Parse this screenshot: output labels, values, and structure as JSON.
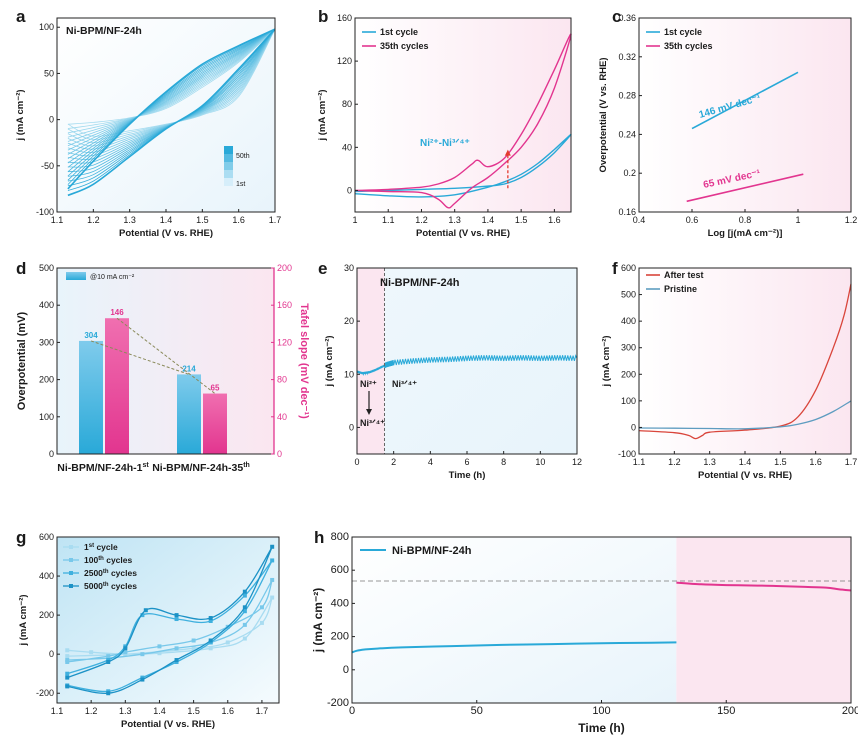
{
  "figure": {
    "description_panels": [
      "a",
      "b",
      "c",
      "d",
      "e",
      "f",
      "g",
      "h"
    ]
  },
  "colors": {
    "blue": "#29a9d8",
    "blue_light": "#a6dcf0",
    "pink": "#e2358f",
    "red": "#d9453b",
    "steel": "#5e9cc0",
    "bg_blue": "#e8f4fb",
    "bg_pink": "#fbe6f0",
    "dark": "#1a1a1a",
    "olive": "#8a8a5a",
    "arrow_red": "#e33b2f"
  },
  "chart_data": [
    {
      "panel": "a",
      "type": "line",
      "annotation": "Ni-BPM/NF-24h",
      "xlabel": "Potential (V vs. RHE)",
      "ylabel": "j (mA cm⁻²)",
      "xlim": [
        1.1,
        1.7
      ],
      "ylim": [
        -100,
        110
      ],
      "xticks": [
        1.1,
        1.2,
        1.3,
        1.4,
        1.5,
        1.6,
        1.7
      ],
      "yticks": [
        -100,
        -50,
        0,
        50,
        100
      ],
      "colorbar_top": "50th",
      "colorbar_bottom": "1st",
      "cycles": [
        {
          "cycle": 1,
          "upper": [
            [
              1.13,
              -5
            ],
            [
              1.2,
              -3
            ],
            [
              1.3,
              2
            ],
            [
              1.4,
              12
            ],
            [
              1.5,
              35
            ],
            [
              1.6,
              62
            ],
            [
              1.7,
              98
            ]
          ],
          "lower": [
            [
              1.7,
              98
            ],
            [
              1.6,
              25
            ],
            [
              1.5,
              5
            ],
            [
              1.4,
              -5
            ],
            [
              1.3,
              -12
            ],
            [
              1.2,
              -18
            ],
            [
              1.13,
              -5
            ]
          ]
        },
        {
          "cycle": 50,
          "upper": [
            [
              1.13,
              -75
            ],
            [
              1.18,
              -45
            ],
            [
              1.25,
              -5
            ],
            [
              1.35,
              30
            ],
            [
              1.45,
              60
            ],
            [
              1.55,
              80
            ],
            [
              1.7,
              98
            ]
          ],
          "lower": [
            [
              1.7,
              98
            ],
            [
              1.6,
              55
            ],
            [
              1.5,
              15
            ],
            [
              1.4,
              -10
            ],
            [
              1.3,
              -40
            ],
            [
              1.2,
              -70
            ],
            [
              1.13,
              -82
            ]
          ]
        }
      ]
    },
    {
      "panel": "b",
      "type": "line",
      "xlabel": "Potential (V vs. RHE)",
      "ylabel": "j (mA cm⁻²)",
      "xlim": [
        1.0,
        1.65
      ],
      "ylim": [
        -20,
        160
      ],
      "xticks": [
        1.0,
        1.1,
        1.2,
        1.3,
        1.4,
        1.5,
        1.6
      ],
      "yticks": [
        0,
        40,
        80,
        120,
        160
      ],
      "annotation": "Ni²⁺-Ni³ᐟ⁴⁺",
      "series": [
        {
          "name": "1st cycle",
          "x": [
            1.0,
            1.1,
            1.2,
            1.3,
            1.4,
            1.45,
            1.5,
            1.55,
            1.6,
            1.65,
            1.6,
            1.55,
            1.5,
            1.45,
            1.4,
            1.3,
            1.2,
            1.1,
            1.0
          ],
          "y": [
            -1,
            0,
            1,
            2,
            4,
            6,
            12,
            22,
            35,
            52,
            38,
            25,
            15,
            8,
            3,
            -4,
            -6,
            -5,
            -3
          ]
        },
        {
          "name": "35th cycles",
          "x": [
            1.0,
            1.1,
            1.2,
            1.25,
            1.3,
            1.35,
            1.37,
            1.4,
            1.45,
            1.5,
            1.55,
            1.6,
            1.65,
            1.6,
            1.55,
            1.5,
            1.45,
            1.4,
            1.35,
            1.3,
            1.28,
            1.25,
            1.2,
            1.1,
            1.0
          ],
          "y": [
            0,
            1,
            3,
            6,
            12,
            24,
            28,
            22,
            30,
            52,
            80,
            112,
            145,
            95,
            62,
            40,
            25,
            12,
            2,
            -12,
            -16,
            -8,
            -2,
            -1,
            0
          ]
        }
      ],
      "arrow_x": 1.46
    },
    {
      "panel": "c",
      "type": "line",
      "xlabel": "Log [j(mA cm⁻²)]",
      "ylabel": "Overpotential (V vs. RHE)",
      "xlim": [
        0.4,
        1.2
      ],
      "ylim": [
        0.16,
        0.36
      ],
      "xticks": [
        0.4,
        0.6,
        0.8,
        1.0,
        1.2
      ],
      "yticks": [
        0.16,
        0.2,
        0.24,
        0.28,
        0.32,
        0.36
      ],
      "series": [
        {
          "name": "1st cycle",
          "x": [
            0.6,
            1.0
          ],
          "y": [
            0.246,
            0.304
          ],
          "label": "146 mV dec⁻¹"
        },
        {
          "name": "35th cycles",
          "x": [
            0.58,
            1.02
          ],
          "y": [
            0.171,
            0.199
          ],
          "label": "65 mV dec⁻¹"
        }
      ]
    },
    {
      "panel": "d",
      "type": "bar",
      "categories": [
        "Ni-BPM/NF-24h-1st",
        "Ni-BPM/NF-24h-35th"
      ],
      "category_labels": [
        {
          "main": "Ni-BPM/NF-24h-1",
          "sup": "st"
        },
        {
          "main": "Ni-BPM/NF-24h-35",
          "sup": "th"
        }
      ],
      "ylabel_left": "Overpotential (mV)",
      "ylabel_right": "Tafel slope (mV dec⁻¹)",
      "ylim_left": [
        0,
        500
      ],
      "ylim_right": [
        0,
        200
      ],
      "yticks_left": [
        0,
        100,
        200,
        300,
        400,
        500
      ],
      "yticks_right": [
        0,
        40,
        80,
        120,
        160,
        200
      ],
      "legend": "@10 mA cm⁻²",
      "overpotential": [
        304,
        214
      ],
      "tafel": [
        146,
        65
      ]
    },
    {
      "panel": "e",
      "type": "line",
      "annotation": "Ni-BPM/NF-24h",
      "xlabel": "Time (h)",
      "ylabel": "j (mA cm⁻²)",
      "xlim": [
        0,
        12
      ],
      "ylim": [
        -5,
        30
      ],
      "xticks": [
        0,
        2,
        4,
        6,
        8,
        10,
        12
      ],
      "yticks": [
        0,
        10,
        20,
        30
      ],
      "divider_x": 1.5,
      "text_left": "Ni²⁺",
      "text_left2": "Ni³ᐟ⁴⁺",
      "text_right": "Ni³ᐟ⁴⁺",
      "series": [
        {
          "name": "",
          "x": [
            0,
            0.3,
            0.7,
            1.0,
            1.3,
            1.6,
            2,
            3,
            4,
            5,
            6,
            7,
            8,
            9,
            10,
            11,
            12
          ],
          "y": [
            10.5,
            10.2,
            10.4,
            10.8,
            11.3,
            11.8,
            12.2,
            12.5,
            12.7,
            12.8,
            13.0,
            13.1,
            13.0,
            13.1,
            13.0,
            13.1,
            13.0
          ]
        }
      ]
    },
    {
      "panel": "f",
      "type": "line",
      "xlabel": "Potential (V vs. RHE)",
      "ylabel": "j (mA cm⁻²)",
      "xlim": [
        1.1,
        1.7
      ],
      "ylim": [
        -100,
        600
      ],
      "xticks": [
        1.1,
        1.2,
        1.3,
        1.4,
        1.5,
        1.6,
        1.7
      ],
      "yticks": [
        -100,
        0,
        100,
        200,
        300,
        400,
        500,
        600
      ],
      "series": [
        {
          "name": "After test",
          "x": [
            1.1,
            1.2,
            1.24,
            1.26,
            1.28,
            1.3,
            1.4,
            1.5,
            1.55,
            1.6,
            1.65,
            1.68,
            1.7
          ],
          "y": [
            -12,
            -20,
            -30,
            -42,
            -30,
            -18,
            -10,
            5,
            40,
            140,
            300,
            420,
            540
          ]
        },
        {
          "name": "Pristine",
          "x": [
            1.1,
            1.2,
            1.3,
            1.4,
            1.5,
            1.55,
            1.6,
            1.65,
            1.7
          ],
          "y": [
            -2,
            -3,
            -4,
            -5,
            2,
            12,
            30,
            60,
            100
          ]
        }
      ]
    },
    {
      "panel": "g",
      "type": "line",
      "xlabel": "Potential (V vs. RHE)",
      "ylabel": "j (mA cm⁻²)",
      "xlim": [
        1.1,
        1.75
      ],
      "ylim": [
        -250,
        600
      ],
      "xticks": [
        1.1,
        1.2,
        1.3,
        1.4,
        1.5,
        1.6,
        1.7
      ],
      "yticks": [
        -200,
        0,
        200,
        400,
        600
      ],
      "series": [
        {
          "name": "1st cycle",
          "sup": "st",
          "label_main": "1",
          "label_rest": " cycle",
          "upper": [
            [
              1.13,
              -10
            ],
            [
              1.3,
              0
            ],
            [
              1.5,
              30
            ],
            [
              1.6,
              60
            ],
            [
              1.7,
              160
            ],
            [
              1.73,
              290
            ]
          ],
          "lower": [
            [
              1.73,
              290
            ],
            [
              1.65,
              80
            ],
            [
              1.55,
              30
            ],
            [
              1.4,
              5
            ],
            [
              1.3,
              0
            ],
            [
              1.2,
              10
            ],
            [
              1.13,
              20
            ]
          ]
        },
        {
          "name": "100th cycles",
          "sup": "th",
          "label_main": "100",
          "label_rest": " cycles",
          "upper": [
            [
              1.13,
              -40
            ],
            [
              1.25,
              -10
            ],
            [
              1.3,
              10
            ],
            [
              1.4,
              40
            ],
            [
              1.5,
              70
            ],
            [
              1.6,
              140
            ],
            [
              1.7,
              240
            ],
            [
              1.73,
              380
            ]
          ],
          "lower": [
            [
              1.73,
              380
            ],
            [
              1.65,
              150
            ],
            [
              1.55,
              60
            ],
            [
              1.45,
              30
            ],
            [
              1.35,
              0
            ],
            [
              1.25,
              -20
            ],
            [
              1.13,
              -30
            ]
          ]
        },
        {
          "name": "2500th cycles",
          "sup": "th",
          "label_main": "2500",
          "label_rest": " cycles",
          "upper": [
            [
              1.13,
              -100
            ],
            [
              1.25,
              -30
            ],
            [
              1.3,
              40
            ],
            [
              1.35,
              200
            ],
            [
              1.45,
              180
            ],
            [
              1.55,
              170
            ],
            [
              1.65,
              300
            ],
            [
              1.73,
              480
            ]
          ],
          "lower": [
            [
              1.73,
              480
            ],
            [
              1.65,
              220
            ],
            [
              1.55,
              60
            ],
            [
              1.45,
              -40
            ],
            [
              1.35,
              -120
            ],
            [
              1.25,
              -190
            ],
            [
              1.13,
              -160
            ]
          ]
        },
        {
          "name": "5000th cycles",
          "sup": "th",
          "label_main": "5000",
          "label_rest": " cycles",
          "upper": [
            [
              1.13,
              -120
            ],
            [
              1.25,
              -40
            ],
            [
              1.3,
              30
            ],
            [
              1.36,
              225
            ],
            [
              1.45,
              200
            ],
            [
              1.55,
              185
            ],
            [
              1.65,
              320
            ],
            [
              1.73,
              550
            ]
          ],
          "lower": [
            [
              1.73,
              550
            ],
            [
              1.65,
              240
            ],
            [
              1.55,
              70
            ],
            [
              1.45,
              -30
            ],
            [
              1.35,
              -130
            ],
            [
              1.25,
              -200
            ],
            [
              1.13,
              -165
            ]
          ]
        }
      ]
    },
    {
      "panel": "h",
      "type": "line",
      "xlabel": "Time (h)",
      "ylabel": "j (mA cm⁻²)",
      "xlim": [
        0,
        200
      ],
      "ylim": [
        -200,
        800
      ],
      "xticks": [
        0,
        50,
        100,
        150,
        200
      ],
      "yticks": [
        -200,
        0,
        200,
        400,
        600,
        800
      ],
      "reference_y": 535,
      "series": [
        {
          "name": "Ni-BPM/NF-24h",
          "x": [
            0,
            2,
            5,
            10,
            20,
            40,
            60,
            80,
            100,
            120,
            130
          ],
          "y": [
            105,
            115,
            122,
            128,
            135,
            143,
            150,
            155,
            160,
            163,
            165
          ]
        },
        {
          "name": "",
          "x": [
            130,
            140,
            150,
            160,
            170,
            180,
            190,
            195,
            200
          ],
          "y": [
            525,
            515,
            510,
            508,
            505,
            500,
            495,
            485,
            478
          ]
        }
      ]
    }
  ]
}
